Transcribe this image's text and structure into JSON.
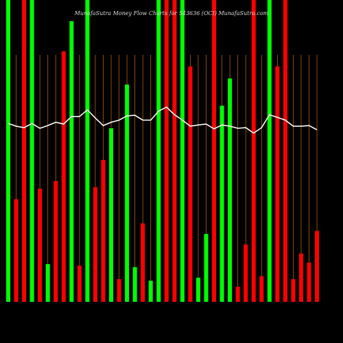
{
  "chart_data": {
    "type": "bar-line",
    "title": "MunafaSutra Money Flow Charts for 543636 (OCI) MunafaSutra.com",
    "ylim": [
      0,
      100
    ],
    "bars": {
      "values": [
        100,
        34,
        100,
        100,
        37.5,
        12.5,
        40,
        83,
        93,
        12,
        100,
        38,
        47,
        57.5,
        7.5,
        72,
        11.5,
        26,
        7,
        100,
        100,
        100,
        100,
        78,
        8,
        22.5,
        100,
        65,
        74,
        5,
        19,
        100,
        8.5,
        100,
        78,
        100,
        7.5,
        16,
        13,
        23.5
      ],
      "colors": [
        "#00ff00",
        "#ff0000",
        "#ff0000",
        "#00ff00",
        "#ff0000",
        "#00ff00",
        "#ff0000",
        "#ff0000",
        "#00ff00",
        "#ff0000",
        "#00ff00",
        "#ff0000",
        "#ff0000",
        "#00ff00",
        "#ff0000",
        "#00ff00",
        "#00ff00",
        "#ff0000",
        "#00ff00",
        "#00ff00",
        "#ff0000",
        "#ff0000",
        "#00ff00",
        "#ff0000",
        "#00ff00",
        "#00ff00",
        "#ff0000",
        "#00ff00",
        "#00ff00",
        "#ff0000",
        "#ff0000",
        "#ff0000",
        "#ff0000",
        "#00ff00",
        "#ff0000",
        "#ff0000",
        "#ff0000",
        "#ff0000",
        "#ff0000",
        "#ff0000"
      ]
    },
    "line": {
      "color": "#ffffff",
      "values": [
        59.1,
        58.2,
        57.7,
        59.1,
        57.5,
        58.4,
        59.5,
        58.9,
        61.4,
        61.4,
        63.6,
        60.9,
        58.4,
        59.5,
        60.2,
        61.6,
        61.8,
        60.2,
        60.2,
        63.2,
        64.5,
        62,
        60.2,
        58.2,
        58.6,
        58.9,
        57.3,
        58.6,
        58.2,
        57.5,
        57.7,
        55.9,
        57.7,
        62,
        61.1,
        60.2,
        58.2,
        58.2,
        58.4,
        57
      ]
    },
    "gridline_color": "#b8600b"
  }
}
